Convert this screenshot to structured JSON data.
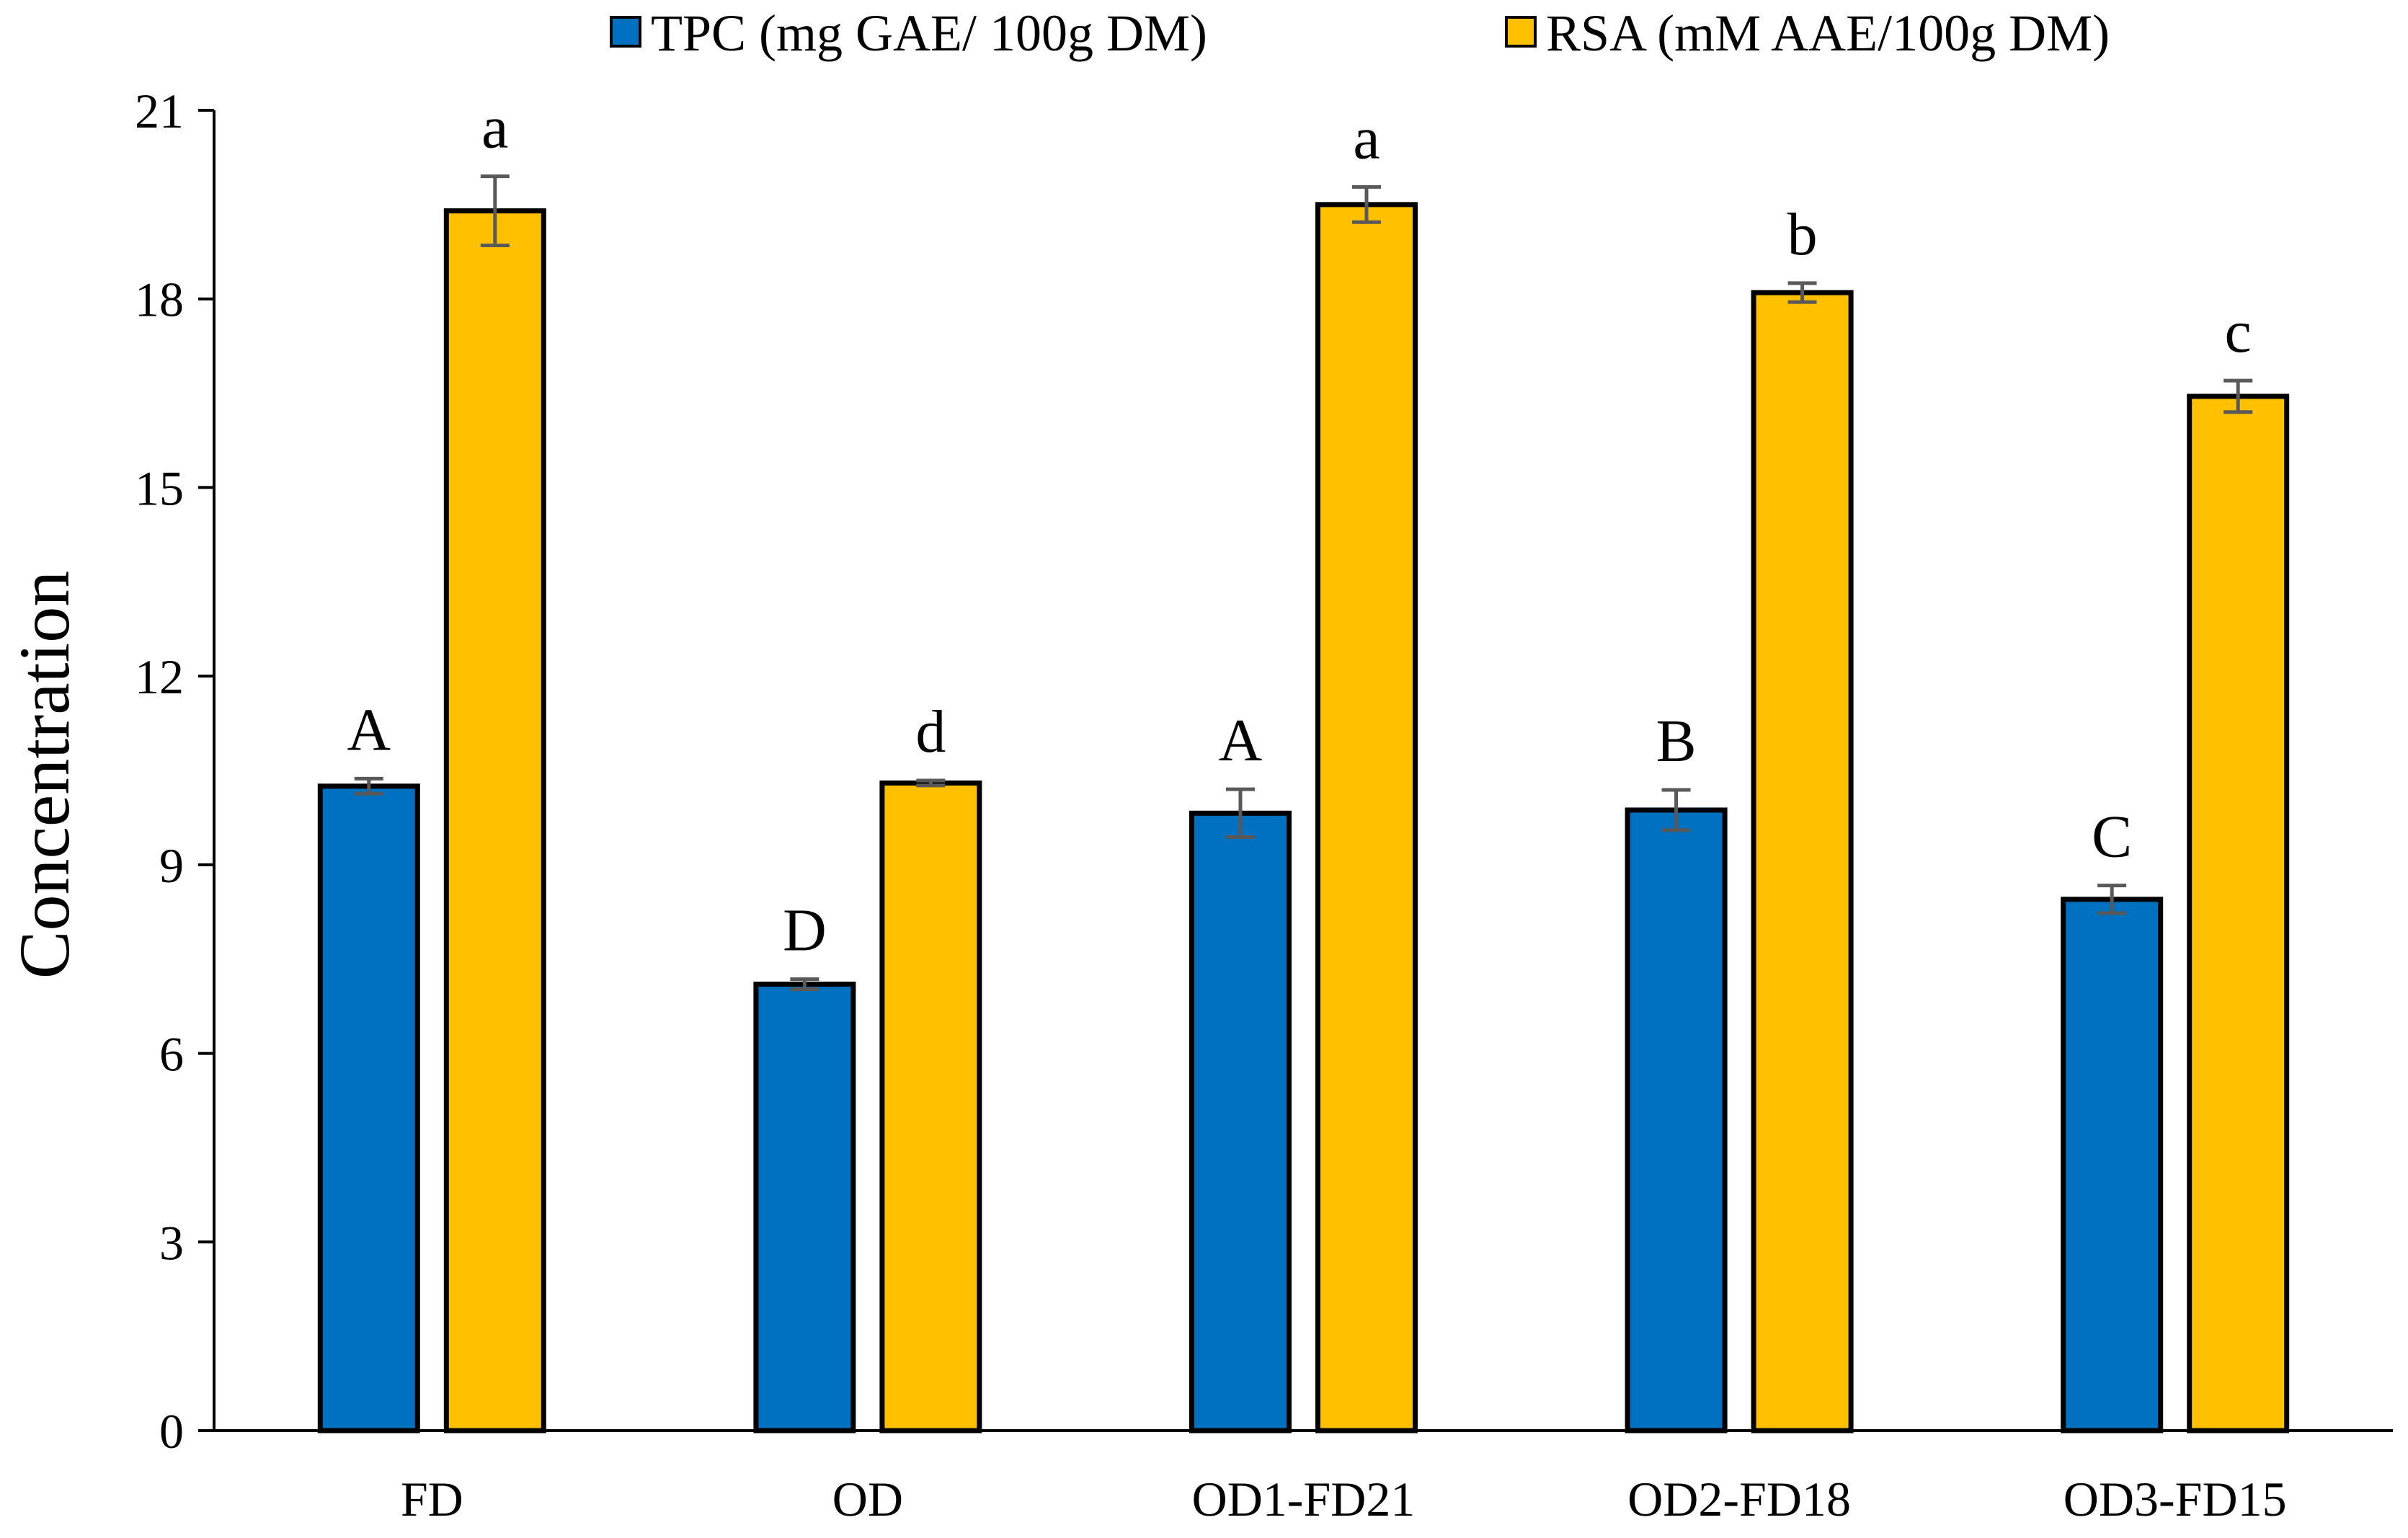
{
  "chart_data": {
    "type": "bar",
    "title": "",
    "xlabel": "",
    "ylabel": "Concentration",
    "ylim": [
      0,
      21
    ],
    "yticks": [
      0,
      3,
      6,
      9,
      12,
      15,
      18,
      21
    ],
    "grid": false,
    "legend_position": "top-center",
    "categories": [
      "FD",
      "OD",
      "OD1-FD21",
      "OD2-FD18",
      "OD3-FD15"
    ],
    "series": [
      {
        "name": "TPC (mg GAE/ 100g DM)",
        "color": "#0070C0",
        "values": [
          10.25,
          7.1,
          9.82,
          9.87,
          8.45
        ],
        "errors": [
          0.12,
          0.08,
          0.38,
          0.32,
          0.22
        ],
        "labels": [
          "A",
          "D",
          "A",
          "B",
          "C"
        ]
      },
      {
        "name": "RSA (mM AAE/100g DM)",
        "color": "#FFC000",
        "values": [
          19.4,
          10.3,
          19.5,
          18.1,
          16.45
        ],
        "errors": [
          0.55,
          0.04,
          0.28,
          0.15,
          0.25
        ],
        "labels": [
          "a",
          "d",
          "a",
          "b",
          "c"
        ]
      }
    ]
  }
}
